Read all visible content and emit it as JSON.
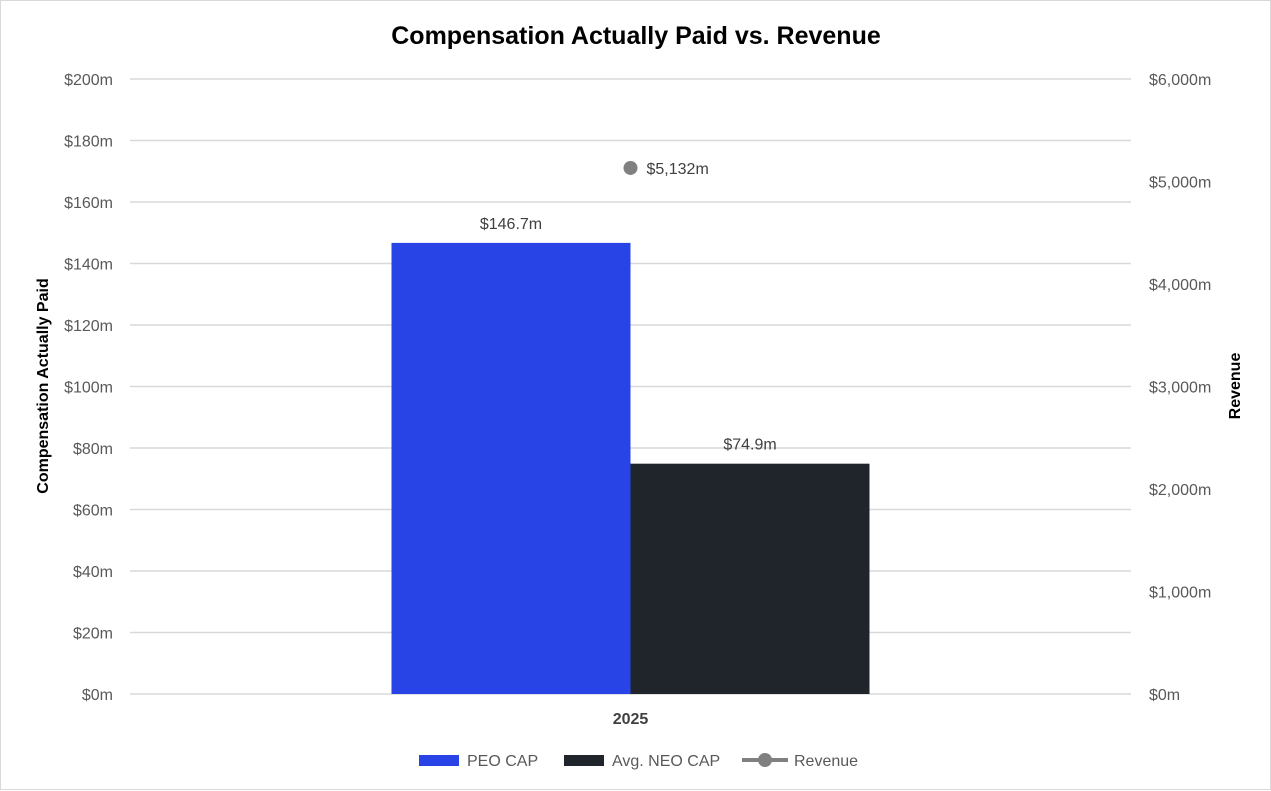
{
  "chart_data": {
    "type": "bar",
    "title": "Compensation Actually Paid vs. Revenue",
    "xlabel": "",
    "ylabel": "Compensation Actually Paid",
    "y2label": "Revenue",
    "categories": [
      "2025"
    ],
    "ylim": [
      0,
      200
    ],
    "y2lim": [
      0,
      6000
    ],
    "y_ticks": [
      0,
      20,
      40,
      60,
      80,
      100,
      120,
      140,
      160,
      180,
      200
    ],
    "y_tick_labels": [
      "$0m",
      "$20m",
      "$40m",
      "$60m",
      "$80m",
      "$100m",
      "$120m",
      "$140m",
      "$160m",
      "$180m",
      "$200m"
    ],
    "y2_ticks": [
      0,
      1000,
      2000,
      3000,
      4000,
      5000,
      6000
    ],
    "y2_tick_labels": [
      "$0m",
      "$1,000m",
      "$2,000m",
      "$3,000m",
      "$4,000m",
      "$5,000m",
      "$6,000m"
    ],
    "grid": true,
    "legend_position": "bottom",
    "series": [
      {
        "name": "PEO CAP",
        "type": "bar",
        "axis": "left",
        "color": "#2843e6",
        "values": [
          146.7
        ],
        "data_labels": [
          "$146.7m"
        ]
      },
      {
        "name": "Avg. NEO CAP",
        "type": "bar",
        "axis": "left",
        "color": "#20242b",
        "values": [
          74.9
        ],
        "data_labels": [
          "$74.9m"
        ]
      },
      {
        "name": "Revenue",
        "type": "line",
        "axis": "right",
        "color": "#808080",
        "values": [
          5132
        ],
        "data_labels": [
          "$5,132m"
        ]
      }
    ]
  }
}
